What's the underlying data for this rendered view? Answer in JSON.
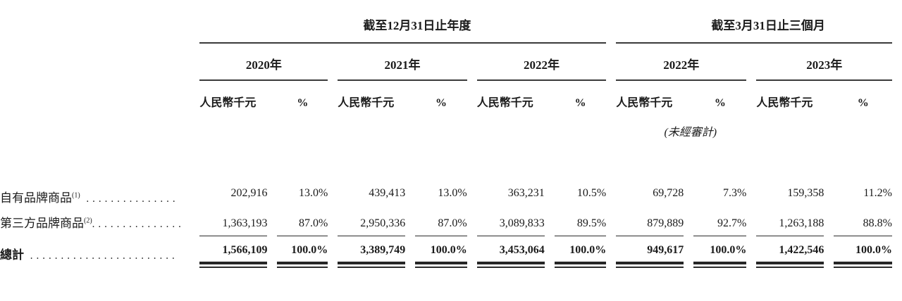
{
  "table": {
    "period_groups": [
      {
        "label": "截至12月31日止年度"
      },
      {
        "label": "截至3月31日止三個月"
      }
    ],
    "years": [
      "2020年",
      "2021年",
      "2022年",
      "2022年",
      "2023年"
    ],
    "units": {
      "amount": "人民幣千元",
      "percent": "%"
    },
    "note_unaudited": "(未經審計)",
    "rows": [
      {
        "label": "自有品牌商品",
        "sup": "(1)",
        "dots": " ...............",
        "values": [
          "202,916",
          "13.0%",
          "439,413",
          "13.0%",
          "363,231",
          "10.5%",
          "69,728",
          "7.3%",
          "159,358",
          "11.2%"
        ]
      },
      {
        "label": "第三方品牌商品",
        "sup": "(2)",
        "dots": "...............",
        "values": [
          "1,363,193",
          "87.0%",
          "2,950,336",
          "87.0%",
          "3,089,833",
          "89.5%",
          "879,889",
          "92.7%",
          "1,263,188",
          "88.8%"
        ]
      }
    ],
    "total": {
      "label": "總計",
      "dots": " ........................",
      "values": [
        "1,566,109",
        "100.0%",
        "3,389,749",
        "100.0%",
        "3,453,064",
        "100.0%",
        "949,617",
        "100.0%",
        "1,422,546",
        "100.0%"
      ]
    }
  }
}
